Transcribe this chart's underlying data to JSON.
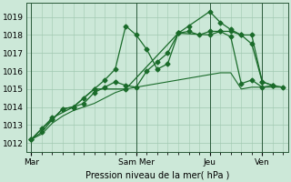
{
  "background_color": "#cce8d8",
  "grid_color": "#a0c8b0",
  "line_color": "#1a6b2a",
  "marker_color": "#1a6b2a",
  "xlabel": "Pression niveau de la mer( hPa )",
  "ylim": [
    1011.5,
    1019.8
  ],
  "yticks": [
    1012,
    1013,
    1014,
    1015,
    1016,
    1017,
    1018,
    1019
  ],
  "xtick_labels": [
    "Mar",
    "Sam Mer",
    "Jeu",
    "Ven"
  ],
  "xtick_positions": [
    0,
    10,
    17,
    22
  ],
  "total_points": 25,
  "series1_x": [
    0,
    1,
    2,
    3,
    4,
    5,
    6,
    7,
    8,
    9,
    10,
    11,
    12,
    13,
    14,
    15,
    16,
    17,
    18,
    19,
    20,
    21,
    22,
    23,
    24
  ],
  "series1": [
    1012.2,
    1012.5,
    1013.1,
    1013.5,
    1013.8,
    1014.0,
    1014.2,
    1014.5,
    1014.8,
    1015.0,
    1015.1,
    1015.2,
    1015.3,
    1015.4,
    1015.5,
    1015.6,
    1015.7,
    1015.8,
    1015.9,
    1015.9,
    1015.0,
    1015.1,
    1015.1,
    1015.1,
    1015.1
  ],
  "series2_x": [
    0,
    1,
    2,
    3,
    4,
    5,
    6,
    7,
    8,
    9,
    10,
    11,
    12,
    13,
    14,
    15,
    16,
    17,
    18,
    19,
    20,
    21,
    22,
    23,
    24
  ],
  "series2": [
    1012.2,
    1012.6,
    1013.3,
    1013.9,
    1014.0,
    1014.2,
    1014.8,
    1015.1,
    1015.4,
    1015.2,
    1015.1,
    1016.0,
    1016.5,
    1017.0,
    1018.1,
    1018.2,
    1018.0,
    1018.2,
    1018.2,
    1017.9,
    1015.3,
    1015.5,
    1015.1,
    1015.2,
    1015.1
  ],
  "series3_x": [
    0,
    1,
    2,
    3,
    4,
    5,
    6,
    7,
    8,
    9,
    10,
    11,
    12,
    13,
    14,
    15,
    17,
    18,
    19,
    20,
    21,
    22,
    23
  ],
  "series3": [
    1012.2,
    1012.8,
    1013.3,
    1013.9,
    1014.0,
    1014.5,
    1015.0,
    1015.5,
    1016.1,
    1018.5,
    1018.0,
    1017.2,
    1016.1,
    1016.4,
    1018.1,
    1018.5,
    1019.3,
    1018.7,
    1018.3,
    1018.0,
    1018.0,
    1015.4,
    1015.2
  ],
  "series4_x": [
    0,
    2,
    4,
    6,
    9,
    14,
    17,
    18,
    19,
    20,
    21,
    22,
    23
  ],
  "series4": [
    1012.2,
    1013.4,
    1014.0,
    1015.0,
    1015.0,
    1018.1,
    1018.0,
    1018.2,
    1018.2,
    1018.0,
    1017.5,
    1015.4,
    1015.2
  ]
}
